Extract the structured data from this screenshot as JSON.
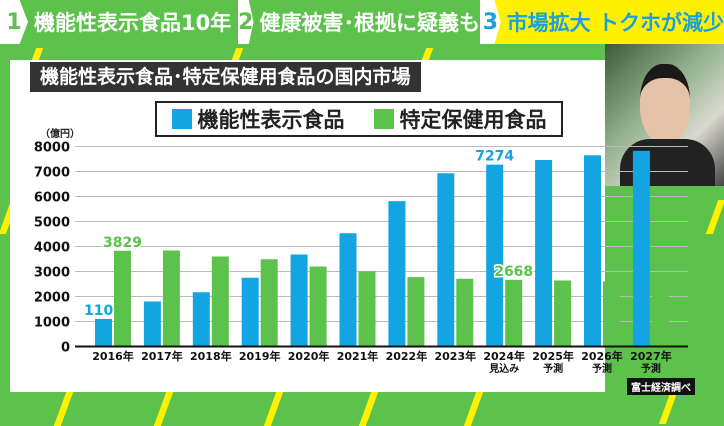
{
  "banner": [
    {
      "num": "1",
      "text": "機能性表示食品10年"
    },
    {
      "num": "2",
      "text": "健康被害･根拠に疑義も"
    },
    {
      "num": "3",
      "text": "市場拡大 トクホが減少"
    }
  ],
  "source": "富士経済調べ",
  "video": {
    "icon": "person-video-feed"
  },
  "colors": {
    "blue": "#12a5e2",
    "green": "#5cc24c",
    "yellow": "#fff200"
  },
  "chart_data": {
    "type": "bar",
    "title": "機能性表示食品･特定保健用食品の国内市場",
    "unit_label": "（億円）",
    "legend_position": "top",
    "categories": [
      "2016年",
      "2017年",
      "2018年",
      "2019年",
      "2020年",
      "2021年",
      "2022年",
      "2023年",
      "2024年",
      "2025年",
      "2026年",
      "2027年"
    ],
    "category_sublabels": [
      "",
      "",
      "",
      "",
      "",
      "",
      "",
      "",
      "見込み",
      "予測",
      "予測",
      "予測"
    ],
    "ylim": [
      0,
      8000
    ],
    "yticks": [
      0,
      1000,
      2000,
      3000,
      4000,
      5000,
      6000,
      7000,
      8000
    ],
    "grid": true,
    "series": [
      {
        "name": "機能性表示食品",
        "color": "#12a5e2",
        "values": [
          1101,
          1800,
          2170,
          2750,
          3680,
          4530,
          5815,
          6930,
          7274,
          7460,
          7650,
          7825
        ],
        "data_labels": {
          "0": "1101",
          "8": "7274"
        }
      },
      {
        "name": "特定保健用食品",
        "color": "#5cc24c",
        "values": [
          3829,
          3840,
          3600,
          3490,
          3200,
          3010,
          2775,
          2710,
          2668,
          2640,
          2600,
          2545
        ],
        "data_labels": {
          "0": "3829",
          "8": "2668"
        }
      }
    ]
  }
}
